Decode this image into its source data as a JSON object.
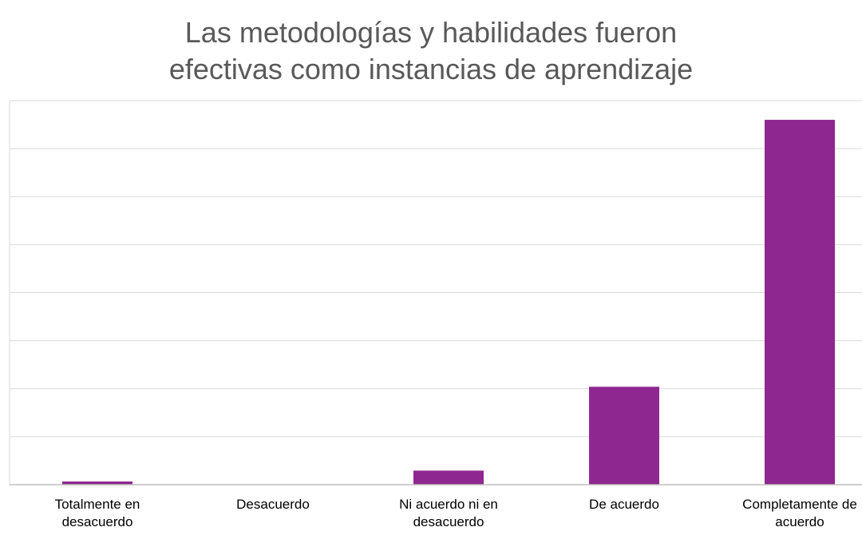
{
  "chart_data": {
    "type": "bar",
    "title_lines": [
      "Las metodologías y habilidades fueron",
      "efectivas como instancias de aprendizaje"
    ],
    "categories": [
      [
        "Totalmente en",
        "desacuerdo"
      ],
      [
        "Desacuerdo"
      ],
      [
        "Ni acuerdo ni en",
        "desacuerdo"
      ],
      [
        "De acuerdo"
      ],
      [
        "Completamente de",
        "acuerdo"
      ]
    ],
    "values": [
      0.5,
      0,
      2.2,
      15.3,
      57
    ],
    "ylim": [
      0,
      60
    ],
    "grid_step": 7.5,
    "bar_color": "#8E278F",
    "grid_color": "#D9D9D9",
    "axis_color": "#BFBFBF",
    "grid": true,
    "legend": false
  }
}
